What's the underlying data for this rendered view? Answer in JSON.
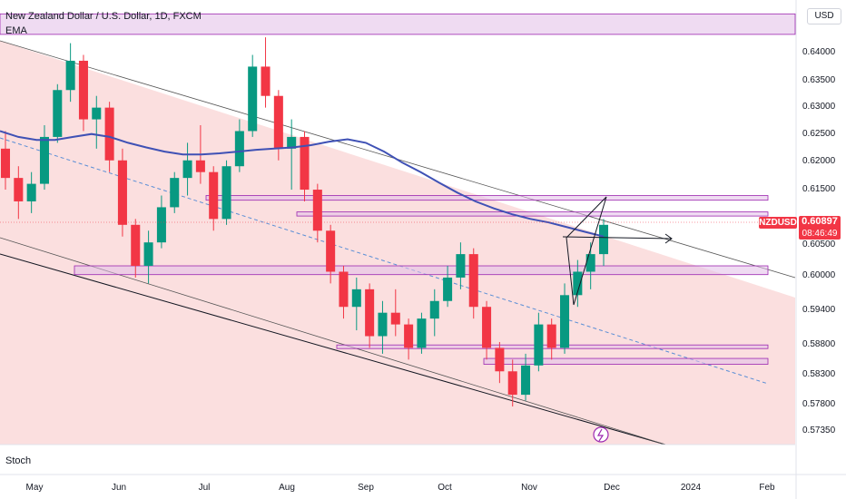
{
  "chart_data": {
    "type": "candlestick",
    "title": "New Zealand Dollar / U.S. Dollar, 1D, FXCM",
    "indicator": "EMA",
    "lower_pane": "Stoch",
    "currency": "USD",
    "symbol": "NZDUSD",
    "last_price": "0.60897",
    "countdown": "08:46:49",
    "y_ticks": [
      "0.64000",
      "0.63500",
      "0.63000",
      "0.62500",
      "0.62000",
      "0.61500",
      "0.60500",
      "0.60000",
      "0.59400",
      "0.58800",
      "0.58300",
      "0.57800",
      "0.57350"
    ],
    "x_ticks": [
      "May",
      "Jun",
      "Jul",
      "Aug",
      "Sep",
      "Oct",
      "Nov",
      "Dec",
      "2024",
      "Feb"
    ],
    "ylim": [
      0.5715,
      0.6452
    ],
    "ohlc_daily_approx": [
      [
        0.622,
        0.625,
        0.615,
        0.617
      ],
      [
        0.617,
        0.619,
        0.61,
        0.613
      ],
      [
        0.613,
        0.618,
        0.611,
        0.616
      ],
      [
        0.616,
        0.626,
        0.615,
        0.624
      ],
      [
        0.624,
        0.633,
        0.623,
        0.632
      ],
      [
        0.632,
        0.64,
        0.63,
        0.637
      ],
      [
        0.637,
        0.638,
        0.625,
        0.627
      ],
      [
        0.627,
        0.631,
        0.622,
        0.629
      ],
      [
        0.629,
        0.63,
        0.618,
        0.62
      ],
      [
        0.62,
        0.622,
        0.607,
        0.609
      ],
      [
        0.609,
        0.61,
        0.6,
        0.602
      ],
      [
        0.602,
        0.608,
        0.599,
        0.606
      ],
      [
        0.606,
        0.614,
        0.605,
        0.612
      ],
      [
        0.612,
        0.618,
        0.611,
        0.617
      ],
      [
        0.617,
        0.623,
        0.614,
        0.62
      ],
      [
        0.62,
        0.626,
        0.616,
        0.618
      ],
      [
        0.618,
        0.619,
        0.608,
        0.61
      ],
      [
        0.61,
        0.62,
        0.609,
        0.619
      ],
      [
        0.619,
        0.627,
        0.618,
        0.625
      ],
      [
        0.625,
        0.638,
        0.624,
        0.636
      ],
      [
        0.636,
        0.641,
        0.629,
        0.631
      ],
      [
        0.631,
        0.632,
        0.62,
        0.622
      ],
      [
        0.622,
        0.627,
        0.615,
        0.624
      ],
      [
        0.624,
        0.625,
        0.613,
        0.615
      ],
      [
        0.615,
        0.616,
        0.606,
        0.608
      ],
      [
        0.608,
        0.609,
        0.599,
        0.601
      ],
      [
        0.601,
        0.602,
        0.593,
        0.595
      ],
      [
        0.595,
        0.6,
        0.591,
        0.598
      ],
      [
        0.598,
        0.599,
        0.588,
        0.59
      ],
      [
        0.59,
        0.596,
        0.587,
        0.594
      ],
      [
        0.594,
        0.598,
        0.59,
        0.592
      ],
      [
        0.592,
        0.593,
        0.586,
        0.588
      ],
      [
        0.588,
        0.594,
        0.587,
        0.593
      ],
      [
        0.593,
        0.598,
        0.59,
        0.596
      ],
      [
        0.596,
        0.602,
        0.595,
        0.6
      ],
      [
        0.6,
        0.606,
        0.598,
        0.604
      ],
      [
        0.604,
        0.605,
        0.593,
        0.595
      ],
      [
        0.595,
        0.596,
        0.586,
        0.588
      ],
      [
        0.588,
        0.589,
        0.582,
        0.584
      ],
      [
        0.584,
        0.586,
        0.578,
        0.58
      ],
      [
        0.58,
        0.587,
        0.579,
        0.585
      ],
      [
        0.585,
        0.594,
        0.584,
        0.592
      ],
      [
        0.592,
        0.593,
        0.586,
        0.588
      ],
      [
        0.588,
        0.599,
        0.587,
        0.597
      ],
      [
        0.597,
        0.603,
        0.595,
        0.601
      ],
      [
        0.601,
        0.606,
        0.598,
        0.604
      ],
      [
        0.604,
        0.61,
        0.602,
        0.609
      ]
    ],
    "ema_approx": [
      0.625,
      0.624,
      0.6235,
      0.6235,
      0.624,
      0.6245,
      0.624,
      0.623,
      0.6222,
      0.6215,
      0.621,
      0.621,
      0.6212,
      0.6215,
      0.6218,
      0.622,
      0.6222,
      0.6226,
      0.6232,
      0.6236,
      0.623,
      0.6215,
      0.6196,
      0.618,
      0.6162,
      0.6145,
      0.613,
      0.6118,
      0.6108,
      0.61,
      0.6094,
      0.6086,
      0.6078,
      0.607
    ],
    "zones": [
      {
        "top": 0.645,
        "bottom": 0.6415
      },
      {
        "top": 0.614,
        "bottom": 0.6132
      },
      {
        "top": 0.6112,
        "bottom": 0.6105
      },
      {
        "top": 0.602,
        "bottom": 0.6005
      },
      {
        "top": 0.5885,
        "bottom": 0.588
      },
      {
        "top": 0.5862,
        "bottom": 0.5852
      }
    ],
    "colors": {
      "up": "#089981",
      "down": "#f23645",
      "ema": "#3f51b5",
      "zone": "#9c27b0",
      "channel": "#f8c9c9"
    }
  }
}
